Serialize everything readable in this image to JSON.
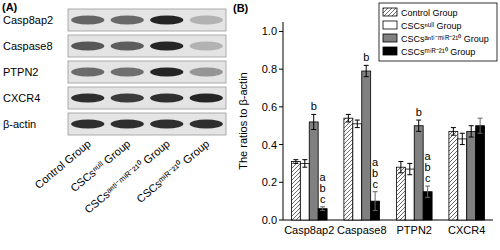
{
  "blot": {
    "label": "(A)",
    "rows": [
      "Casp8ap2",
      "Caspase8",
      "PTPN2",
      "CXCR4",
      "β-actin"
    ],
    "lanes": [
      "Control Group",
      "CSCsⁿᵘˡˡ Group",
      "CSCsᵃⁿᵗⁱ⁻ᵐⁱᴿ⁻²¹⁰ Group",
      "CSCsᵐⁱᴿ⁻²¹⁰ Group"
    ]
  },
  "chart_data": {
    "type": "bar",
    "title": "(B)",
    "y_label": "The ratios to β-actin",
    "categories": [
      "Casp8ap2",
      "Caspase8",
      "PTPN2",
      "CXCR4"
    ],
    "series": [
      {
        "name": "Control Group",
        "color": "#ffffff",
        "values": [
          0.31,
          0.54,
          0.28,
          0.47
        ],
        "errors": [
          0.01,
          0.02,
          0.03,
          0.02
        ]
      },
      {
        "name": "CSCsⁿᵘˡˡ Group",
        "color": "#ffffff",
        "values": [
          0.3,
          0.51,
          0.27,
          0.43
        ],
        "errors": [
          0.02,
          0.02,
          0.03,
          0.03
        ]
      },
      {
        "name": "CSCsᵃⁿᵗⁱ⁻ᵐⁱᴿ⁻²¹⁰ Group",
        "color": "#808080",
        "values": [
          0.52,
          0.79,
          0.5,
          0.47
        ],
        "errors": [
          0.04,
          0.03,
          0.03,
          0.03
        ],
        "annotations": [
          "b",
          "b",
          "b",
          null
        ]
      },
      {
        "name": "CSCsᵐⁱᴿ⁻²¹⁰ Group",
        "color": "#000000",
        "values": [
          0.06,
          0.1,
          0.15,
          0.5
        ],
        "errors": [
          0.01,
          0.05,
          0.03,
          0.04
        ],
        "annotations": [
          "a b c",
          "a b c",
          "a b c",
          null
        ]
      }
    ],
    "ylim": [
      0,
      1.05
    ],
    "yticks": [
      {
        "value": 0,
        "label": "0.0"
      },
      0.2,
      0.4,
      0.6,
      0.8,
      {
        "value": 1,
        "label": "1.0"
      }
    ],
    "legend": "upper right",
    "grid": false
  }
}
